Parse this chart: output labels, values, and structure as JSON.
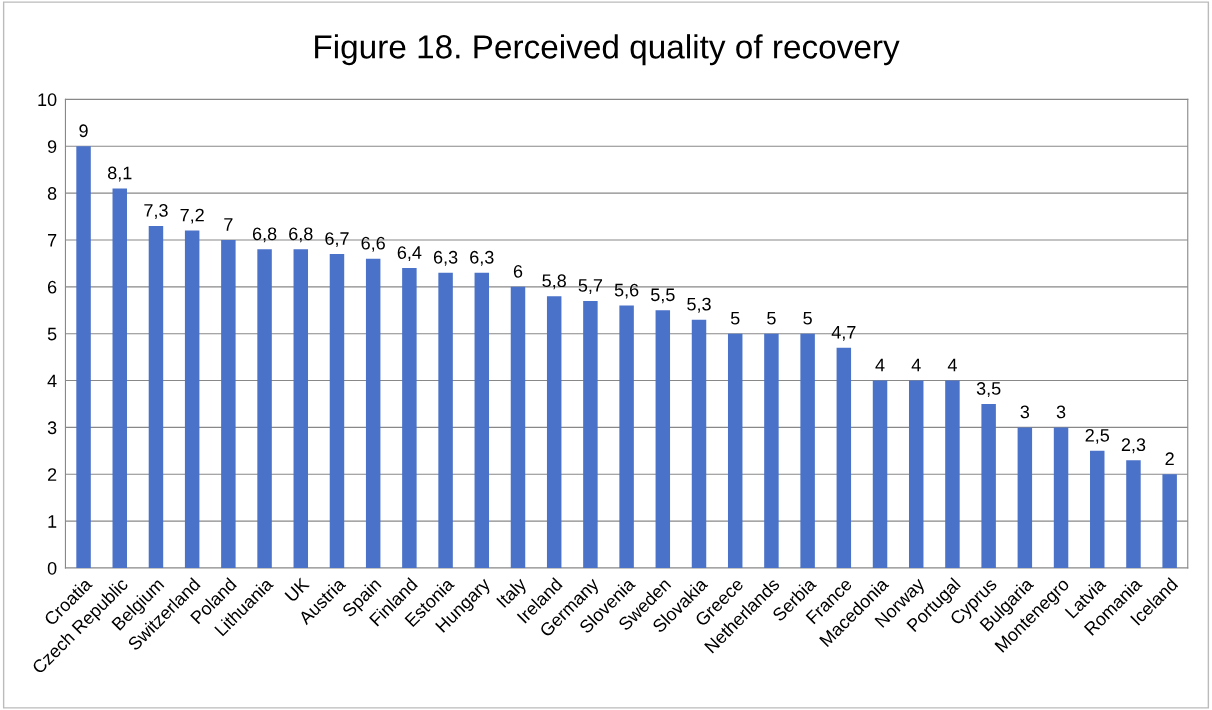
{
  "chart_data": {
    "type": "bar",
    "title": "Figure 18. Perceived quality of recovery",
    "categories": [
      "Croatia",
      "Czech Republic",
      "Belgium",
      "Switzerland",
      "Poland",
      "Lithuania",
      "UK",
      "Austria",
      "Spain",
      "Finland",
      "Estonia",
      "Hungary",
      "Italy",
      "Ireland",
      "Germany",
      "Slovenia",
      "Sweden",
      "Slovakia",
      "Greece",
      "Netherlands",
      "Serbia",
      "France",
      "Macedonia",
      "Norway",
      "Portugal",
      "Cyprus",
      "Bulgaria",
      "Montenegro",
      "Latvia",
      "Romania",
      "Iceland"
    ],
    "values": [
      9,
      8.1,
      7.3,
      7.2,
      7,
      6.8,
      6.8,
      6.7,
      6.6,
      6.4,
      6.3,
      6.3,
      6,
      5.8,
      5.7,
      5.6,
      5.5,
      5.3,
      5,
      5,
      5,
      4.7,
      4,
      4,
      4,
      3.5,
      3,
      3,
      2.5,
      2.3,
      2
    ],
    "value_labels": [
      "9",
      "8,1",
      "7,3",
      "7,2",
      "7",
      "6,8",
      "6,8",
      "6,7",
      "6,6",
      "6,4",
      "6,3",
      "6,3",
      "6",
      "5,8",
      "5,7",
      "5,6",
      "5,5",
      "5,3",
      "5",
      "5",
      "5",
      "4,7",
      "4",
      "4",
      "4",
      "3,5",
      "3",
      "3",
      "2,5",
      "2,3",
      "2"
    ],
    "color": "#4a72c8",
    "ylim": [
      0,
      10
    ],
    "yticks": [
      0,
      1,
      2,
      3,
      4,
      5,
      6,
      7,
      8,
      9,
      10
    ],
    "grid": "y"
  }
}
